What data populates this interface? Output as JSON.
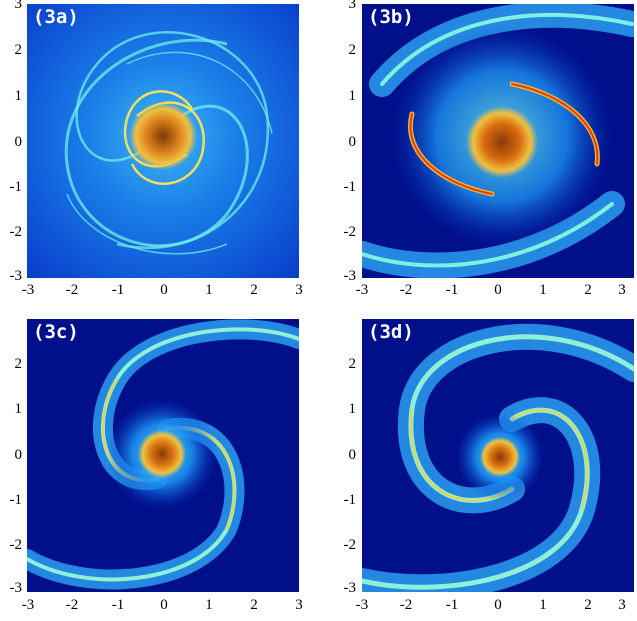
{
  "panels": [
    {
      "label": "(3a)"
    },
    {
      "label": "(3b)"
    },
    {
      "label": "(3c)"
    },
    {
      "label": "(3d)"
    }
  ],
  "axis": {
    "ticks": [
      "-3",
      "-2",
      "-1",
      "0",
      "1",
      "2",
      "3"
    ]
  },
  "colors": {
    "background_blue": "#00108a",
    "mid_blue": "#0a64e6",
    "cyan": "#3fe0f0",
    "yellow": "#f0f05a",
    "orange": "#e08a1c",
    "core": "#9a4a10"
  }
}
